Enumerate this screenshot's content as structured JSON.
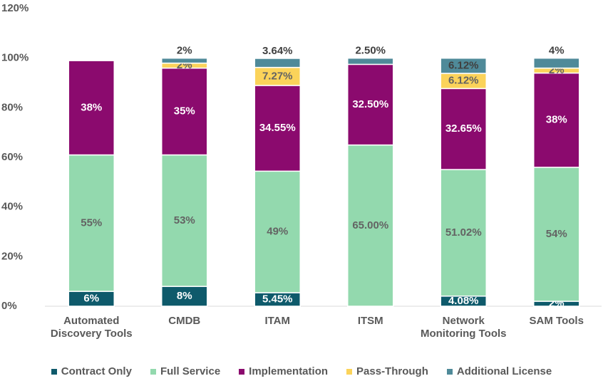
{
  "chart_data": {
    "type": "stacked_bar",
    "categories": [
      "Automated Discovery Tools",
      "CMDB",
      "ITAM",
      "ITSM",
      "Network Monitoring Tools",
      "SAM Tools"
    ],
    "series": [
      {
        "name": "Contract Only",
        "color": "#0e5a6b",
        "label_color": "#ffffff",
        "values": [
          6,
          8,
          5.45,
          null,
          4.08,
          2
        ],
        "value_labels": [
          "6%",
          "8%",
          "5.45%",
          null,
          "4.08%",
          "2%"
        ]
      },
      {
        "name": "Full Service",
        "color": "#93d9ae",
        "label_color": "#636363",
        "values": [
          55,
          53,
          49,
          65,
          51.02,
          54
        ],
        "value_labels": [
          "55%",
          "53%",
          "49%",
          "65.00%",
          "51.02%",
          "54%"
        ]
      },
      {
        "name": "Implementation",
        "color": "#8b0a6e",
        "label_color": "#ffffff",
        "values": [
          38,
          35,
          34.55,
          32.5,
          32.65,
          38
        ],
        "value_labels": [
          "38%",
          "35%",
          "34.55%",
          "32.50%",
          "32.65%",
          "38%"
        ]
      },
      {
        "name": "Pass-Through",
        "color": "#fbd35a",
        "label_color": "#636363",
        "values": [
          null,
          2,
          7.27,
          null,
          6.12,
          2
        ],
        "value_labels": [
          null,
          "2%",
          "7.27%",
          null,
          "6.12%",
          "2%"
        ]
      },
      {
        "name": "Additional License",
        "color": "#4f8a99",
        "label_color": "#404040",
        "values": [
          null,
          2,
          3.64,
          2.5,
          6.12,
          4
        ],
        "value_labels": [
          null,
          "2%",
          "3.64%",
          "2.50%",
          "6.12%",
          "4%"
        ]
      }
    ],
    "ylim": [
      0,
      120
    ],
    "yticks": [
      {
        "value": 0,
        "label": "0%"
      },
      {
        "value": 20,
        "label": "20%"
      },
      {
        "value": 40,
        "label": "40%"
      },
      {
        "value": 60,
        "label": "60%"
      },
      {
        "value": 80,
        "label": "80%"
      },
      {
        "value": 100,
        "label": "100%"
      },
      {
        "value": 120,
        "label": "120%"
      }
    ],
    "legend": "bottom",
    "grid": false
  }
}
